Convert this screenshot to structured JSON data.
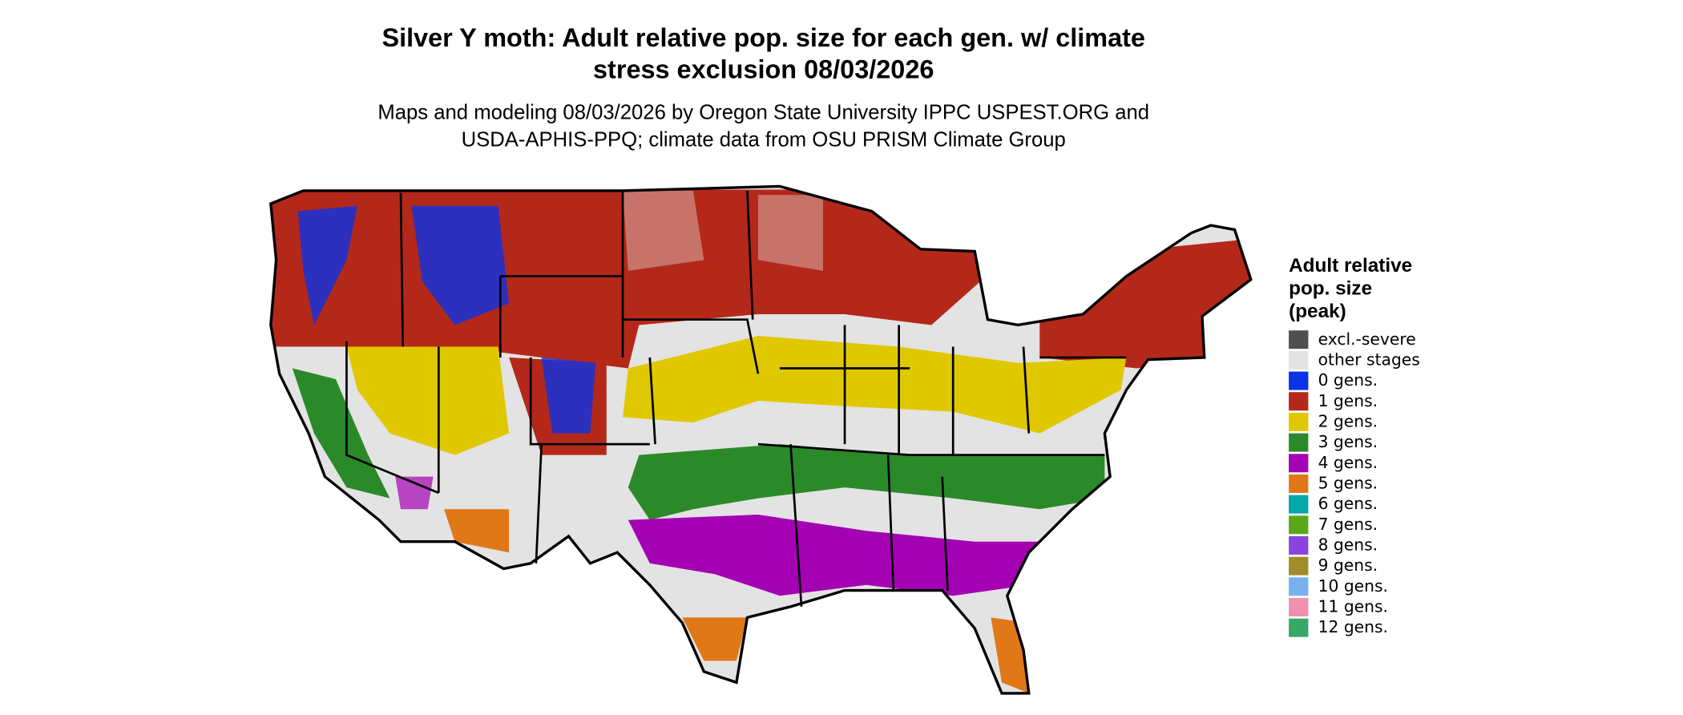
{
  "title": [
    "Silver Y moth: Adult relative pop. size for each gen. w/ climate",
    "stress exclusion 08/03/2026"
  ],
  "subtitle": [
    "Maps and modeling 08/03/2026 by Oregon State University IPPC USPEST.ORG and",
    "USDA-APHIS-PPQ; climate data from OSU PRISM Climate Group"
  ],
  "legend": {
    "title": [
      "Adult relative",
      "pop. size",
      "(peak)"
    ],
    "items": [
      {
        "label": "excl.-severe",
        "color": "#505050"
      },
      {
        "label": "other stages",
        "color": "#e3e3e3"
      },
      {
        "label": "0 gens.",
        "color": "#0a32e6"
      },
      {
        "label": "1 gens.",
        "color": "#b4281a"
      },
      {
        "label": "2 gens.",
        "color": "#e0c800"
      },
      {
        "label": "3 gens.",
        "color": "#2a8a2a"
      },
      {
        "label": "4 gens.",
        "color": "#a400b4"
      },
      {
        "label": "5 gens.",
        "color": "#e07818"
      },
      {
        "label": "6 gens.",
        "color": "#00a8a8"
      },
      {
        "label": "7 gens.",
        "color": "#5aa818"
      },
      {
        "label": "8 gens.",
        "color": "#8844dd"
      },
      {
        "label": "9 gens.",
        "color": "#a08c28"
      },
      {
        "label": "10 gens.",
        "color": "#78b0f0"
      },
      {
        "label": "11 gens.",
        "color": "#ee90b0"
      },
      {
        "label": "12 gens.",
        "color": "#38a868"
      }
    ]
  }
}
